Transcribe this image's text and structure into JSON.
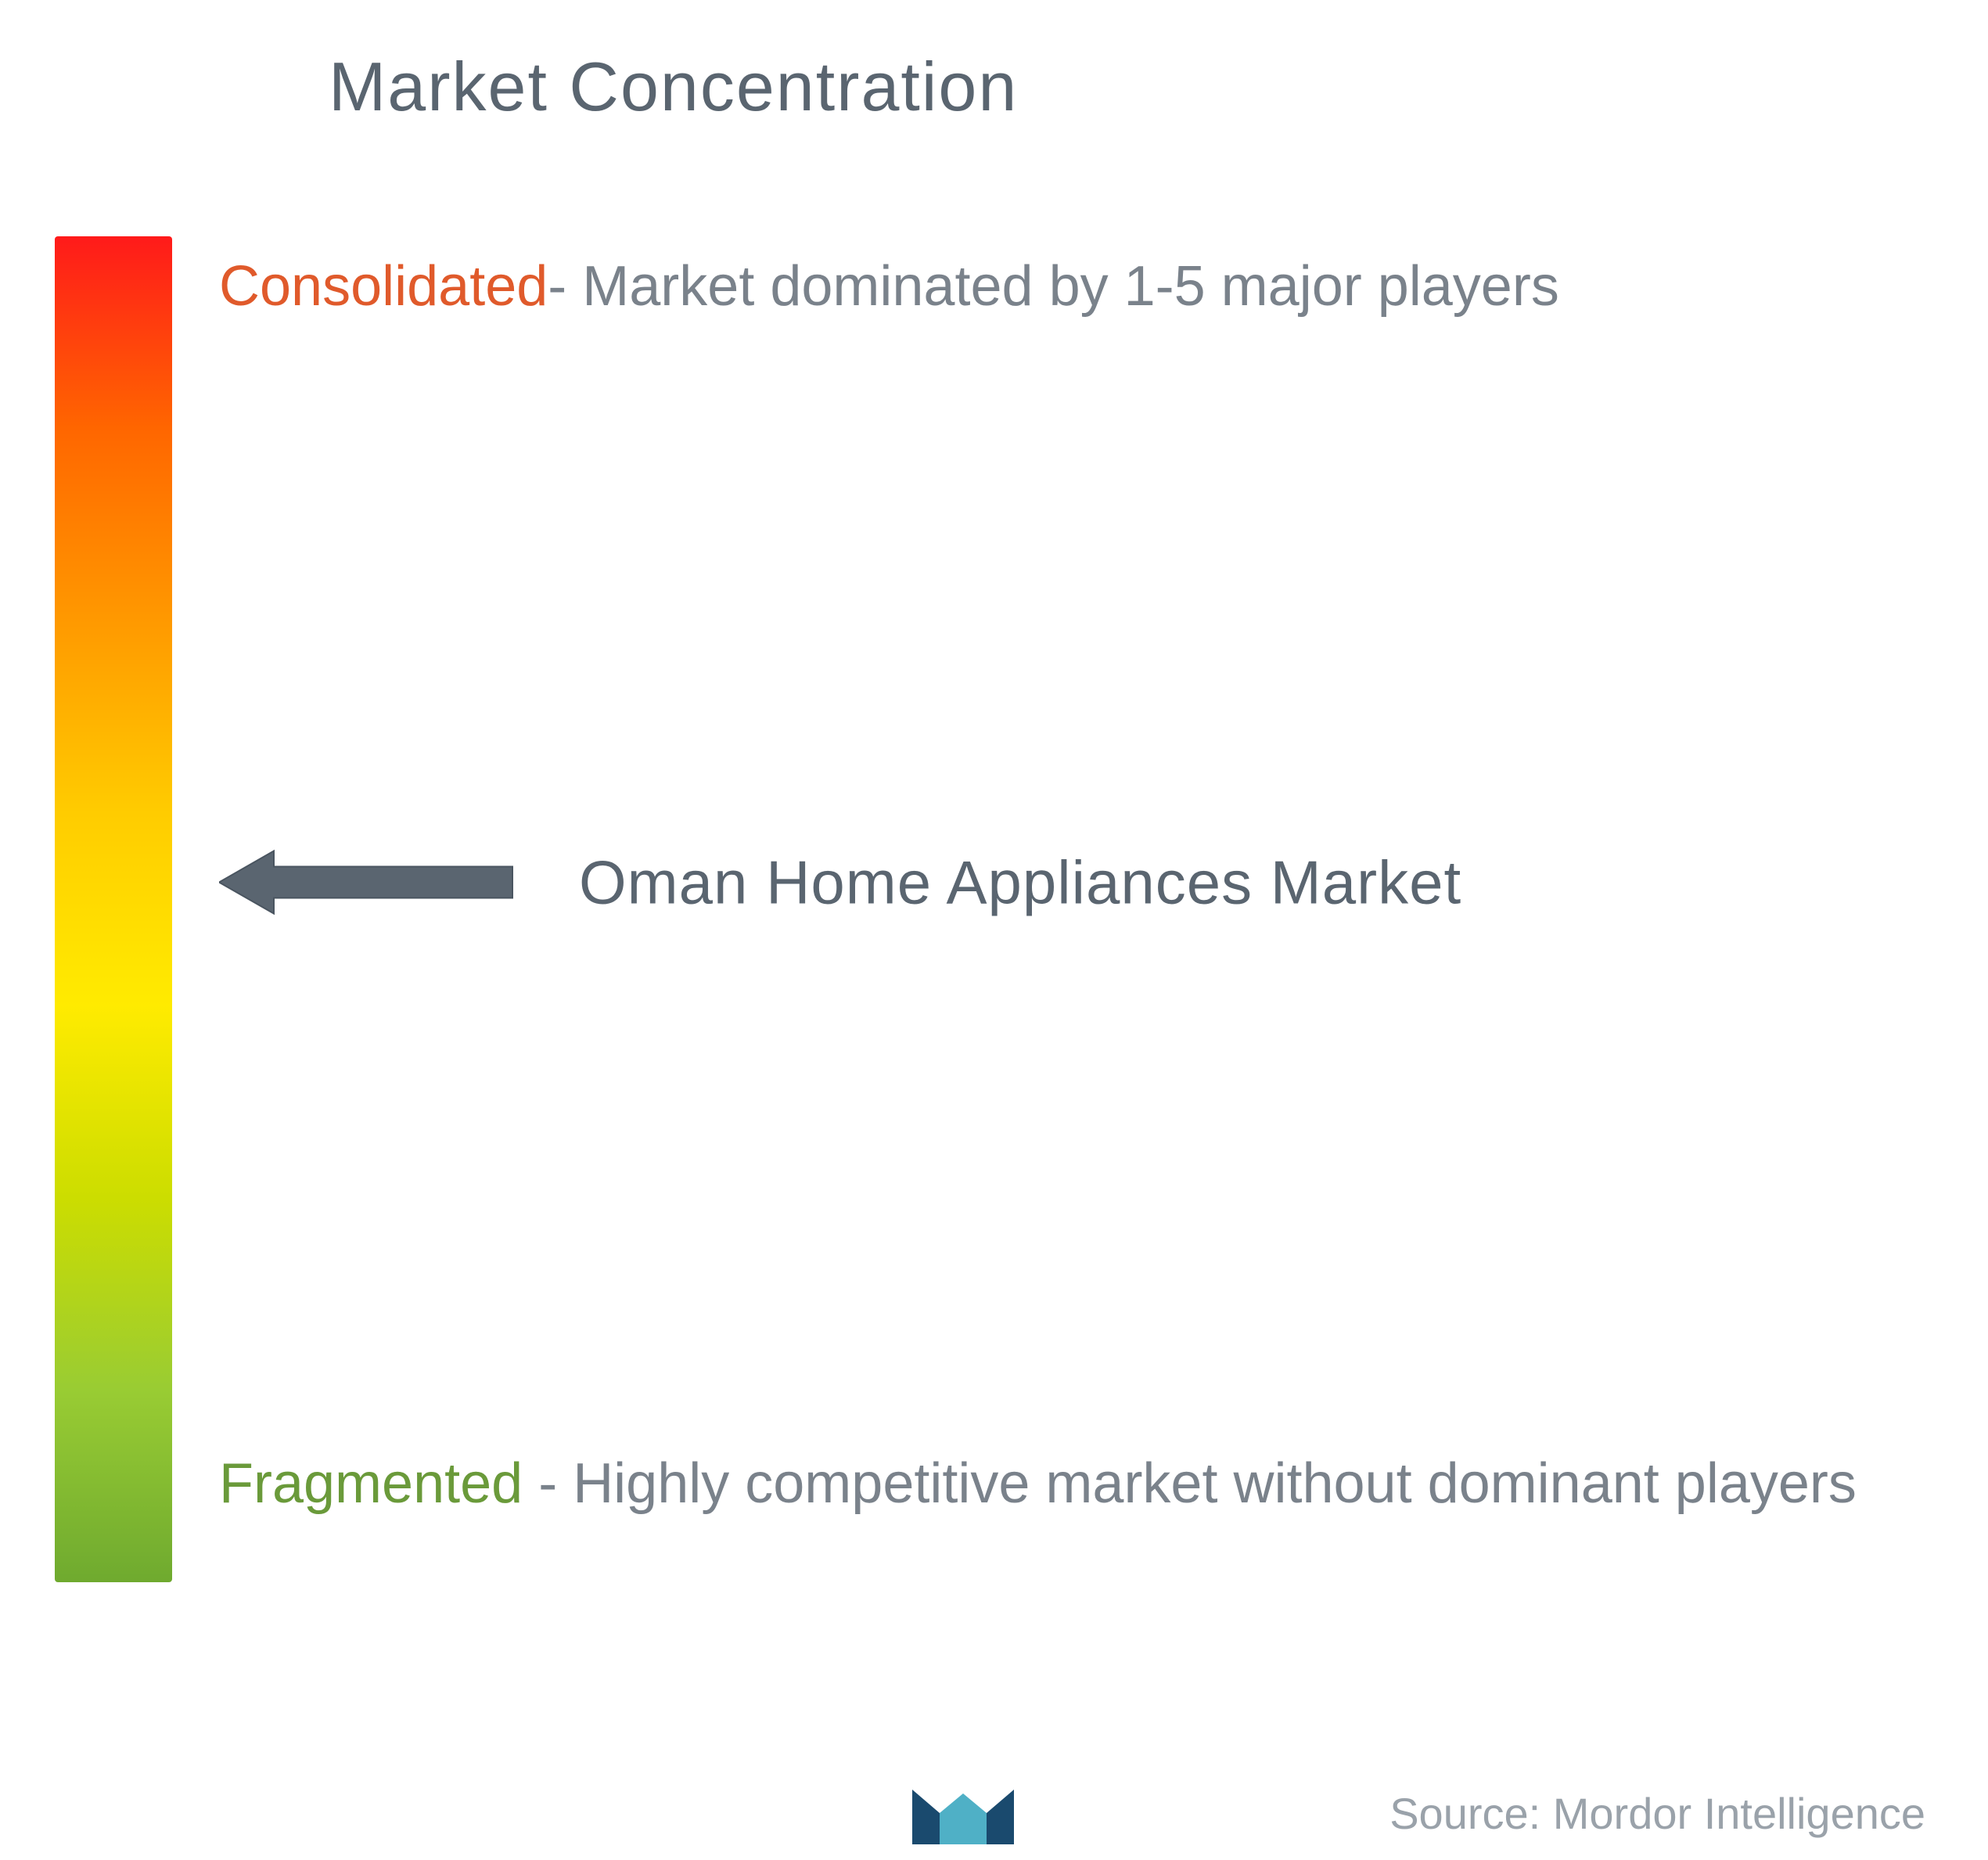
{
  "title": "Market Concentration",
  "gradient": {
    "colors": [
      "#ff1a1a",
      "#ff6600",
      "#ff9900",
      "#ffcc00",
      "#ffeb00",
      "#ccdd00",
      "#99cc33",
      "#6faa2f"
    ],
    "direction": "vertical"
  },
  "top_label": {
    "highlight_text": "Consolidated",
    "highlight_color": "#e05a2b",
    "rest_text": "- Market dominated by 1-5 major players",
    "text_color": "#7a828b"
  },
  "middle": {
    "arrow_color": "#5a6570",
    "arrow_stroke_width": 4,
    "market_name": "Oman Home Appliances Market",
    "market_name_color": "#5a6570",
    "position_percent": 48
  },
  "bottom_label": {
    "highlight_text": "Fragmented",
    "highlight_color": "#6a9a3a",
    "rest_text": " - Highly competitive market without dominant players",
    "text_color": "#7a828b"
  },
  "logo": {
    "primary_color": "#1a4a6e",
    "secondary_color": "#4fb0c6"
  },
  "source": {
    "text": "Source: Mordor Intelligence",
    "color": "#9aa2aa"
  },
  "typography": {
    "title_fontsize": 88,
    "label_fontsize": 72,
    "market_fontsize": 78,
    "source_fontsize": 56
  },
  "background_color": "#ffffff"
}
